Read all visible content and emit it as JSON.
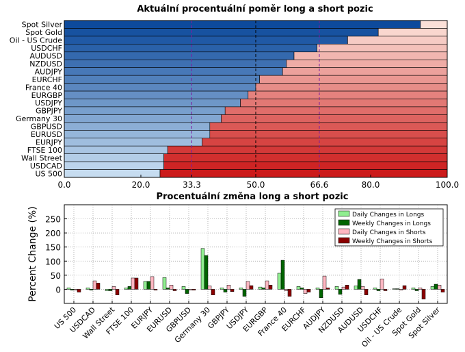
{
  "chart_data": [
    {
      "type": "bar",
      "orientation": "horizontal",
      "stacked": true,
      "title": "Aktuální procentuální poměr long a short pozic",
      "categories": [
        "Spot Silver",
        "Spot Gold",
        "Oil - US Crude",
        "USDCHF",
        "AUDUSD",
        "NZDUSD",
        "AUDJPY",
        "EURCHF",
        "France 40",
        "EURGBP",
        "USDJPY",
        "GBPJPY",
        "Germany 30",
        "GBPUSD",
        "EURUSD",
        "EURJPY",
        "FTSE 100",
        "Wall Street",
        "USDCAD",
        "US 500"
      ],
      "long_percent": [
        93,
        82,
        74,
        66,
        60,
        58,
        57,
        51,
        50,
        48,
        46,
        42,
        41,
        38,
        38,
        36,
        27,
        26,
        26,
        25
      ],
      "series_colors": {
        "long": "#1f6db3",
        "short": "#e03b2e"
      },
      "xlim": [
        0,
        100
      ],
      "xticks": [
        "0.0",
        "20.0",
        "33.3",
        "50.0",
        "66.6",
        "80.0",
        "100.0"
      ],
      "xtick_values": [
        0,
        20,
        33.3,
        50,
        66.6,
        80,
        100
      ],
      "highlight_ticks": [
        "33.3",
        "66.6"
      ],
      "reference_lines": [
        33.3,
        50,
        66.6
      ],
      "reference_line_colors": {
        "33.3": "#7b1fa2",
        "50": "#000000",
        "66.6": "#7b1fa2"
      },
      "highlight_color": "#8b008b"
    },
    {
      "type": "bar",
      "title": "Procentuální změna long a short pozic",
      "ylabel": "Percent Change (%)",
      "ylim": [
        -50,
        300
      ],
      "yticks": [
        0,
        50,
        100,
        150,
        200,
        250
      ],
      "grid": true,
      "legend_position": "top-right",
      "categories": [
        "US 500",
        "USDCAD",
        "Wall Street",
        "FTSE 100",
        "EURJPY",
        "EURUSD",
        "GBPUSD",
        "Germany 30",
        "GBPJPY",
        "USDJPY",
        "EURGBP",
        "France 40",
        "EURCHF",
        "AUDJPY",
        "NZDUSD",
        "AUDUSD",
        "USDCHF",
        "Oil - US Crude",
        "Spot Gold",
        "Spot Silver"
      ],
      "series": [
        {
          "name": "Daily Changes in Longs",
          "color": "#90ee90",
          "values": [
            5,
            5,
            -5,
            5,
            28,
            42,
            10,
            145,
            5,
            5,
            8,
            57,
            10,
            5,
            10,
            12,
            5,
            2,
            5,
            10
          ]
        },
        {
          "name": "Weekly Changes in Longs",
          "color": "#006400",
          "values": [
            -3,
            -3,
            -5,
            10,
            28,
            5,
            -15,
            120,
            -10,
            -25,
            5,
            103,
            5,
            -30,
            -18,
            35,
            -5,
            2,
            -5,
            18
          ]
        },
        {
          "name": "Daily Changes in Shorts",
          "color": "#ffb6c1",
          "values": [
            -3,
            30,
            10,
            40,
            45,
            15,
            -3,
            12,
            15,
            28,
            30,
            -5,
            -15,
            47,
            8,
            10,
            37,
            -3,
            5,
            15
          ]
        },
        {
          "name": "Weekly Changes in Shorts",
          "color": "#8b0000",
          "values": [
            -10,
            22,
            -20,
            40,
            -3,
            -5,
            -3,
            -20,
            -8,
            13,
            15,
            -25,
            -10,
            5,
            15,
            -20,
            -5,
            13,
            -35,
            -10
          ]
        }
      ]
    }
  ]
}
